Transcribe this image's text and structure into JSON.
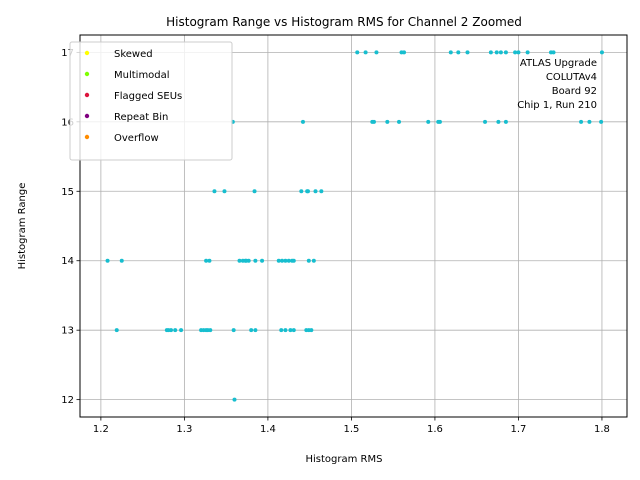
{
  "chart_data": {
    "type": "scatter",
    "title": "Histogram Range vs Histogram RMS for Channel 2 Zoomed",
    "xlabel": "Histogram RMS",
    "ylabel": "Histogram Range",
    "xlim": [
      1.175,
      1.83
    ],
    "ylim": [
      11.75,
      17.25
    ],
    "xticks": [
      "1.2",
      "1.3",
      "1.4",
      "1.5",
      "1.6",
      "1.7",
      "1.8"
    ],
    "yticks": [
      "12",
      "13",
      "14",
      "15",
      "16",
      "17"
    ],
    "grid": true,
    "legend_position": "top-left",
    "legend": [
      {
        "label": "Skewed",
        "color": "#ffff00"
      },
      {
        "label": "Multimodal",
        "color": "#7fff00"
      },
      {
        "label": "Flagged SEUs",
        "color": "#dc143c"
      },
      {
        "label": "Repeat Bin",
        "color": "#800080"
      },
      {
        "label": "Overflow",
        "color": "#ff8c00"
      }
    ],
    "annotation": [
      "ATLAS Upgrade",
      "COLUTAv4",
      "Board 92",
      "Chip 1, Run 210"
    ],
    "point_color": "#17becf",
    "series": [
      {
        "x": [
          1.507,
          1.517,
          1.53,
          1.56,
          1.563,
          1.619,
          1.628,
          1.639,
          1.667,
          1.674,
          1.679,
          1.685,
          1.696,
          1.7,
          1.711,
          1.739,
          1.742,
          1.8,
          1.358,
          1.442,
          1.525,
          1.527,
          1.543,
          1.557,
          1.592,
          1.604,
          1.606,
          1.66,
          1.676,
          1.685,
          1.775,
          1.785,
          1.799,
          1.336,
          1.348,
          1.384,
          1.44,
          1.447,
          1.448,
          1.457,
          1.464,
          1.208,
          1.225,
          1.326,
          1.33,
          1.366,
          1.37,
          1.373,
          1.374,
          1.377,
          1.385,
          1.393,
          1.413,
          1.417,
          1.421,
          1.425,
          1.429,
          1.431,
          1.449,
          1.455,
          1.219,
          1.279,
          1.281,
          1.284,
          1.289,
          1.296,
          1.32,
          1.323,
          1.326,
          1.328,
          1.331,
          1.359,
          1.38,
          1.385,
          1.416,
          1.421,
          1.427,
          1.431,
          1.446,
          1.449,
          1.452,
          1.36
        ],
        "y": [
          17,
          17,
          17,
          17,
          17,
          17,
          17,
          17,
          17,
          17,
          17,
          17,
          17,
          17,
          17,
          17,
          17,
          17,
          16,
          16,
          16,
          16,
          16,
          16,
          16,
          16,
          16,
          16,
          16,
          16,
          16,
          16,
          16,
          15,
          15,
          15,
          15,
          15,
          15,
          15,
          15,
          14,
          14,
          14,
          14,
          14,
          14,
          14,
          14,
          14,
          14,
          14,
          14,
          14,
          14,
          14,
          14,
          14,
          14,
          14,
          13,
          13,
          13,
          13,
          13,
          13,
          13,
          13,
          13,
          13,
          13,
          13,
          13,
          13,
          13,
          13,
          13,
          13,
          13,
          13,
          13,
          12
        ]
      }
    ]
  }
}
